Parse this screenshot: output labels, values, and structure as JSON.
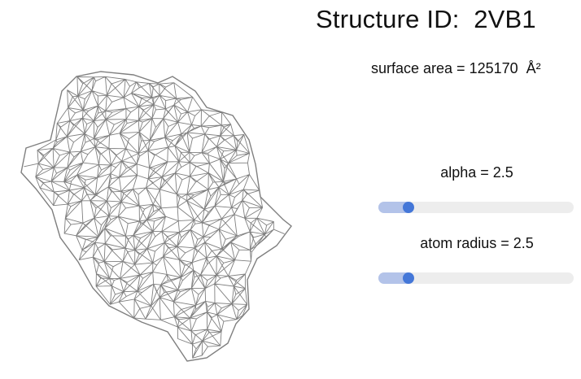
{
  "structure": {
    "title": "Structure ID:  2VB1"
  },
  "surface": {
    "text": "surface area = 125170  Å²"
  },
  "controls": {
    "alpha": {
      "label": "alpha = 2.5",
      "value": 2.5,
      "fraction": 0.155
    },
    "atom_radius": {
      "label": "atom radius = 2.5",
      "value": 2.5,
      "fraction": 0.155
    }
  },
  "colors": {
    "mesh": "#7f7f7f",
    "slider_track": "#ededed",
    "slider_fill": "#b3c3e9",
    "slider_thumb": "#4477d8"
  }
}
